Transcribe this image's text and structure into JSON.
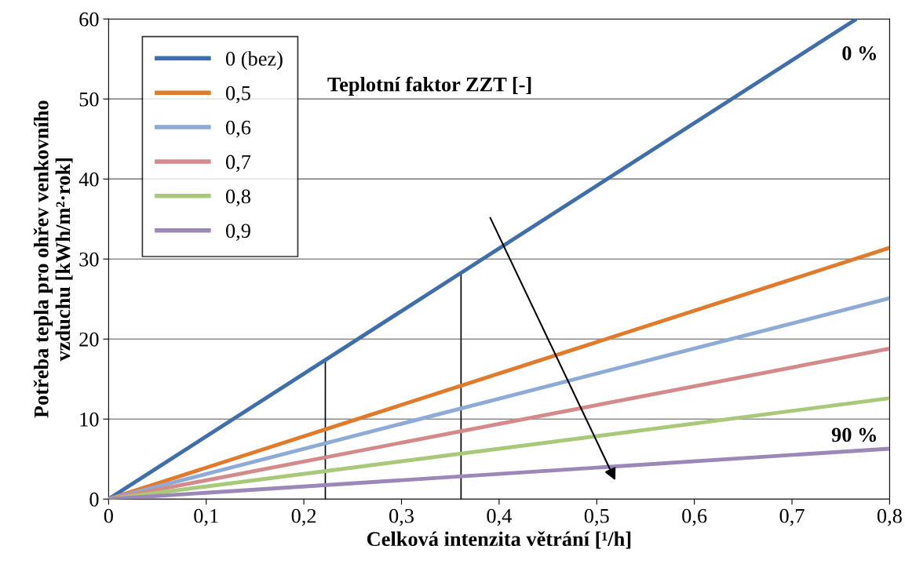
{
  "chart_data": {
    "type": "line",
    "xlabel": "Celková intenzita větrání [¹/h]",
    "ylabel": "Potřeba tepla pro ohřev venkovního\nvzduchu [kWh/m²·rok]",
    "series": [
      {
        "name": "0 (bez)",
        "color": "#3f6ea8",
        "x": [
          0,
          0.766
        ],
        "values": [
          0,
          60
        ]
      },
      {
        "name": "0,5",
        "color": "#e07b2e",
        "x": [
          0,
          0.8
        ],
        "values": [
          0,
          31.4
        ]
      },
      {
        "name": "0,6",
        "color": "#8eaad6",
        "x": [
          0,
          0.8
        ],
        "values": [
          0,
          25.1
        ]
      },
      {
        "name": "0,7",
        "color": "#d48a8a",
        "x": [
          0,
          0.8
        ],
        "values": [
          0,
          18.8
        ]
      },
      {
        "name": "0,8",
        "color": "#a9c97a",
        "x": [
          0,
          0.8
        ],
        "values": [
          0,
          12.6
        ]
      },
      {
        "name": "0,9",
        "color": "#9b88b8",
        "x": [
          0,
          0.8
        ],
        "values": [
          0,
          6.3
        ]
      },
      {
        "type": "line",
        "color": "#000000",
        "x": [
          0.222,
          0.222
        ],
        "values": [
          0,
          17.4
        ]
      },
      {
        "type": "line",
        "color": "#000000",
        "x": [
          0.361,
          0.361
        ],
        "values": [
          0,
          28.3
        ]
      }
    ],
    "annotations": [
      "Teplotní faktor ZZT [-]",
      "0 %",
      "90 %"
    ],
    "xlim": [
      0,
      0.8
    ],
    "xticks": [
      0,
      {
        "value": 0.1,
        "label": "0,1"
      },
      {
        "value": 0.2,
        "label": "0,2"
      },
      {
        "value": 0.3,
        "label": "0,3"
      },
      {
        "value": 0.4,
        "label": "0,4"
      },
      {
        "value": 0.5,
        "label": "0,5"
      },
      {
        "value": 0.6,
        "label": "0,6"
      },
      {
        "value": 0.7,
        "label": "0,7"
      },
      {
        "value": 0.8,
        "label": "0,8"
      }
    ],
    "ylim": [
      0,
      60
    ],
    "yticks": [
      0,
      10,
      20,
      30,
      40,
      50,
      60
    ],
    "grid": "y",
    "legend": "top left"
  }
}
